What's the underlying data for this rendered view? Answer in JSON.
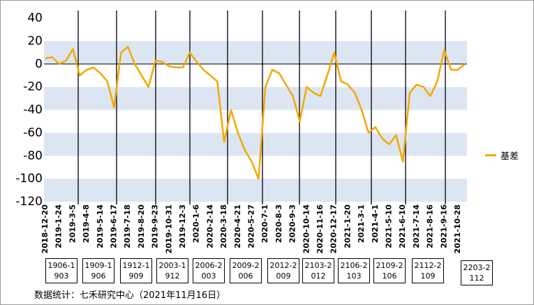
{
  "chart_data": {
    "type": "line",
    "categories": [
      "2018-12-20",
      null,
      "2019-1-24",
      null,
      "2019-3-5",
      null,
      "2019-4-8",
      null,
      "2019-5-14",
      null,
      "2019-6-17",
      null,
      "2019-7-18",
      null,
      "2019-8-20",
      null,
      "2019-9-23",
      null,
      "2019-10-31",
      null,
      "2019-12-3",
      null,
      "2020-1-6",
      null,
      "2020-2-14",
      null,
      "2020-3-18",
      null,
      "2020-4-21",
      null,
      "2020-5-27",
      null,
      "2020-7-1",
      null,
      "2020-8-3",
      null,
      "2020-9-3",
      null,
      "2020-10-14",
      null,
      "2020-11-16",
      null,
      "2020-12-17",
      null,
      "2021-1-20",
      null,
      "2021-3-1",
      null,
      "2021-4-1",
      null,
      "2021-5-10",
      null,
      "2021-6-10",
      null,
      "2021-7-14",
      null,
      "2021-8-16",
      null,
      "2021-9-16",
      null,
      "2021-10-28",
      null
    ],
    "series": [
      {
        "name": "基差",
        "color": "#f5a700",
        "values": [
          5,
          6,
          0,
          3,
          13,
          -10,
          -5,
          -3,
          -8,
          -15,
          -38,
          10,
          15,
          0,
          -10,
          -20,
          3,
          2,
          -2,
          -3,
          -3,
          10,
          2,
          -5,
          -10,
          -15,
          -68,
          -40,
          -60,
          -75,
          -85,
          -100,
          -20,
          -5,
          -8,
          -18,
          -28,
          -50,
          -20,
          -25,
          -28,
          -10,
          10,
          -15,
          -18,
          -25,
          -40,
          -60,
          -55,
          -65,
          -70,
          -62,
          -85,
          -25,
          -18,
          -20,
          -28,
          -15,
          12,
          -5,
          -5,
          0
        ]
      }
    ],
    "ylim": [
      -120,
      40
    ],
    "yticks": [
      -120,
      -100,
      -80,
      -60,
      -40,
      -20,
      0,
      20,
      40
    ],
    "band_color": "#dce6f2",
    "rolls": [
      "1906-1903",
      "1909-1906",
      "1912-1909",
      "2003-1912",
      "2006-2003",
      "2009-2006",
      "2012-2009",
      "2103-2012",
      "2106-2103",
      "2109-2106",
      "2112-2109",
      "2203-2112"
    ],
    "source": "数据统计：七禾研究中心（2021年11月16日）"
  }
}
